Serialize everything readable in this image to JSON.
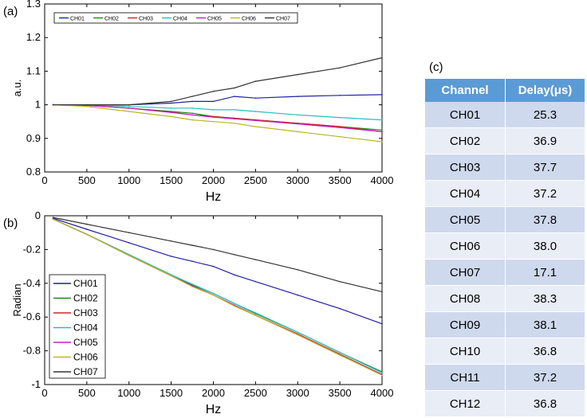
{
  "panels": {
    "a": "(a)",
    "b": "(b)",
    "c": "(c)"
  },
  "chart_data": [
    {
      "type": "line",
      "title": "",
      "xlabel": "Hz",
      "ylabel": "a.u.",
      "xlim": [
        0,
        4000
      ],
      "ylim": [
        0.8,
        1.3
      ],
      "xticks": [
        "0",
        "500",
        "1000",
        "1500",
        "2000",
        "2500",
        "3000",
        "3500",
        "4000"
      ],
      "yticks": [
        "0.8",
        "0.9",
        "1",
        "1.1",
        "1.2",
        "1.3"
      ],
      "legend_position": "top",
      "x": [
        100,
        500,
        1000,
        1500,
        1750,
        2000,
        2250,
        2500,
        3000,
        3500,
        4000
      ],
      "series": [
        {
          "name": "CH01",
          "color": "#1f1fa8",
          "values": [
            1.0,
            1.0,
            1.0,
            1.005,
            1.01,
            1.01,
            1.025,
            1.02,
            1.025,
            1.028,
            1.03
          ]
        },
        {
          "name": "CH02",
          "color": "#1a8a1a",
          "values": [
            1.0,
            0.999,
            0.99,
            0.98,
            0.975,
            0.965,
            0.96,
            0.955,
            0.945,
            0.935,
            0.925
          ]
        },
        {
          "name": "CH03",
          "color": "#d42020",
          "values": [
            1.0,
            0.998,
            0.99,
            0.978,
            0.97,
            0.965,
            0.96,
            0.955,
            0.945,
            0.935,
            0.92
          ]
        },
        {
          "name": "CH04",
          "color": "#22c0c0",
          "values": [
            1.0,
            1.0,
            0.995,
            0.99,
            0.99,
            0.985,
            0.985,
            0.98,
            0.97,
            0.962,
            0.955
          ]
        },
        {
          "name": "CH05",
          "color": "#c020c0",
          "values": [
            1.0,
            0.998,
            0.99,
            0.977,
            0.97,
            0.963,
            0.958,
            0.953,
            0.943,
            0.932,
            0.92
          ]
        },
        {
          "name": "CH06",
          "color": "#b8b820",
          "values": [
            1.0,
            0.995,
            0.98,
            0.965,
            0.955,
            0.95,
            0.945,
            0.935,
            0.92,
            0.905,
            0.89
          ]
        },
        {
          "name": "CH07",
          "color": "#333333",
          "values": [
            1.0,
            1.0,
            1.0,
            1.01,
            1.025,
            1.04,
            1.05,
            1.07,
            1.09,
            1.11,
            1.14
          ]
        }
      ]
    },
    {
      "type": "line",
      "title": "",
      "xlabel": "Hz",
      "ylabel": "Radian",
      "xlim": [
        0,
        4000
      ],
      "ylim": [
        -1,
        0
      ],
      "xticks": [
        "0",
        "500",
        "1000",
        "1500",
        "2000",
        "2500",
        "3000",
        "3500",
        "4000"
      ],
      "yticks": [
        "-1",
        "-0.8",
        "-0.6",
        "-0.4",
        "-0.2",
        "0"
      ],
      "legend_position": "bottom-left",
      "x": [
        100,
        500,
        1000,
        1500,
        1750,
        2000,
        2250,
        2500,
        3000,
        3500,
        4000
      ],
      "series": [
        {
          "name": "CH01",
          "color": "#1f1fa8",
          "values": [
            -0.015,
            -0.08,
            -0.16,
            -0.24,
            -0.27,
            -0.3,
            -0.35,
            -0.39,
            -0.47,
            -0.55,
            -0.64
          ]
        },
        {
          "name": "CH02",
          "color": "#1a8a1a",
          "values": [
            -0.02,
            -0.11,
            -0.23,
            -0.35,
            -0.41,
            -0.46,
            -0.52,
            -0.58,
            -0.69,
            -0.81,
            -0.925
          ]
        },
        {
          "name": "CH03",
          "color": "#d42020",
          "values": [
            -0.02,
            -0.11,
            -0.235,
            -0.355,
            -0.415,
            -0.47,
            -0.53,
            -0.59,
            -0.7,
            -0.82,
            -0.94
          ]
        },
        {
          "name": "CH04",
          "color": "#22c0c0",
          "values": [
            -0.02,
            -0.11,
            -0.23,
            -0.35,
            -0.405,
            -0.46,
            -0.52,
            -0.575,
            -0.69,
            -0.81,
            -0.93
          ]
        },
        {
          "name": "CH05",
          "color": "#c020c0",
          "values": [
            -0.02,
            -0.11,
            -0.235,
            -0.355,
            -0.415,
            -0.47,
            -0.53,
            -0.59,
            -0.705,
            -0.825,
            -0.94
          ]
        },
        {
          "name": "CH06",
          "color": "#b8b820",
          "values": [
            -0.02,
            -0.11,
            -0.235,
            -0.355,
            -0.42,
            -0.47,
            -0.535,
            -0.59,
            -0.705,
            -0.825,
            -0.945
          ]
        },
        {
          "name": "CH07",
          "color": "#333333",
          "values": [
            -0.01,
            -0.05,
            -0.1,
            -0.15,
            -0.175,
            -0.2,
            -0.23,
            -0.26,
            -0.32,
            -0.39,
            -0.45
          ]
        }
      ]
    },
    {
      "type": "table",
      "columns": [
        "Channel",
        "Delay(μs)"
      ],
      "rows": [
        [
          "CH01",
          "25.3"
        ],
        [
          "CH02",
          "36.9"
        ],
        [
          "CH03",
          "37.7"
        ],
        [
          "CH04",
          "37.2"
        ],
        [
          "CH05",
          "37.8"
        ],
        [
          "CH06",
          "38.0"
        ],
        [
          "CH07",
          "17.1"
        ],
        [
          "CH08",
          "38.3"
        ],
        [
          "CH09",
          "38.1"
        ],
        [
          "CH10",
          "36.8"
        ],
        [
          "CH11",
          "37.2"
        ],
        [
          "CH12",
          "36.8"
        ]
      ]
    }
  ]
}
